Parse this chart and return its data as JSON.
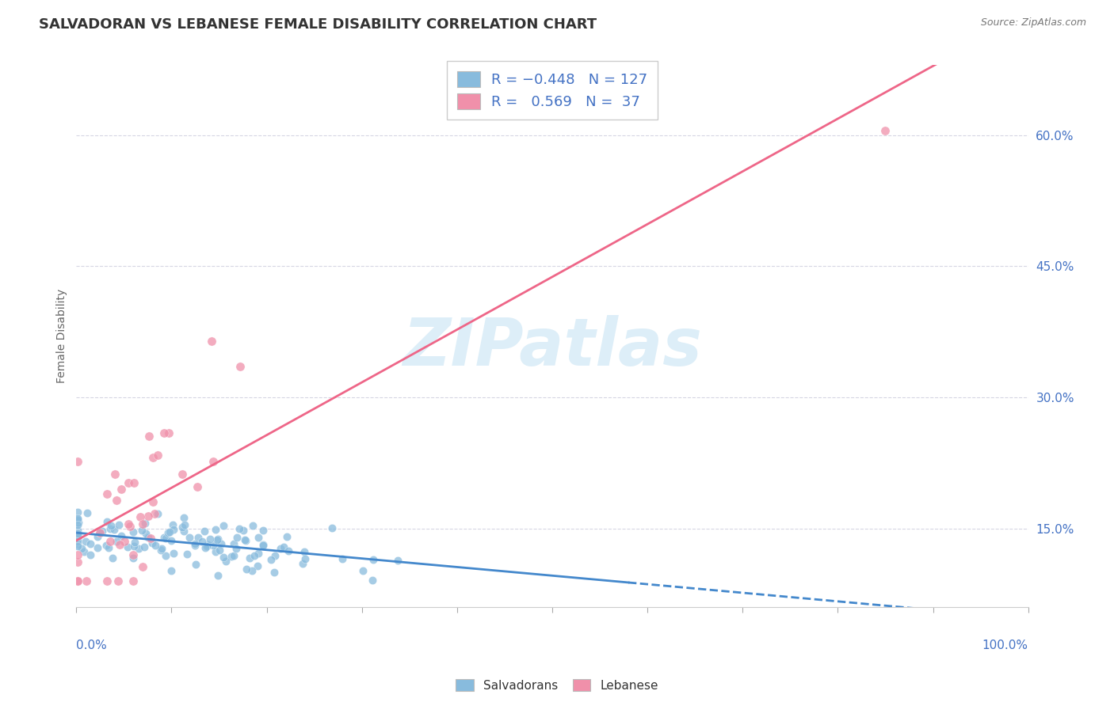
{
  "title": "SALVADORAN VS LEBANESE FEMALE DISABILITY CORRELATION CHART",
  "source": "Source: ZipAtlas.com",
  "ylabel": "Female Disability",
  "right_yticks": [
    0.15,
    0.3,
    0.45,
    0.6
  ],
  "right_yticklabels": [
    "15.0%",
    "30.0%",
    "45.0%",
    "60.0%"
  ],
  "salvadoran_color": "#88bbdd",
  "salvadoran_edge": "white",
  "lebanese_color": "#f090aa",
  "lebanese_edge": "white",
  "salvadoran_line_color": "#4488cc",
  "lebanese_line_color": "#ee6688",
  "watermark_text": "ZIPatlas",
  "watermark_color": "#ddeef8",
  "R_salvador": -0.448,
  "N_salvador": 127,
  "R_lebanese": 0.569,
  "N_lebanese": 37,
  "xlim": [
    0.0,
    1.0
  ],
  "ylim": [
    0.06,
    0.68
  ],
  "sal_line_solid_xmax": 0.58,
  "sal_line_xmin": 0.0,
  "sal_line_xmax": 1.0,
  "leb_line_xmin": 0.0,
  "leb_line_xmax": 1.0,
  "grid_color": "#ccccdd",
  "tick_color": "#aaaaaa",
  "axis_label_color": "#4472c4",
  "title_color": "#333333",
  "source_color": "#777777",
  "legend_text_color": "#4472c4",
  "bottom_legend_color": "#333333"
}
